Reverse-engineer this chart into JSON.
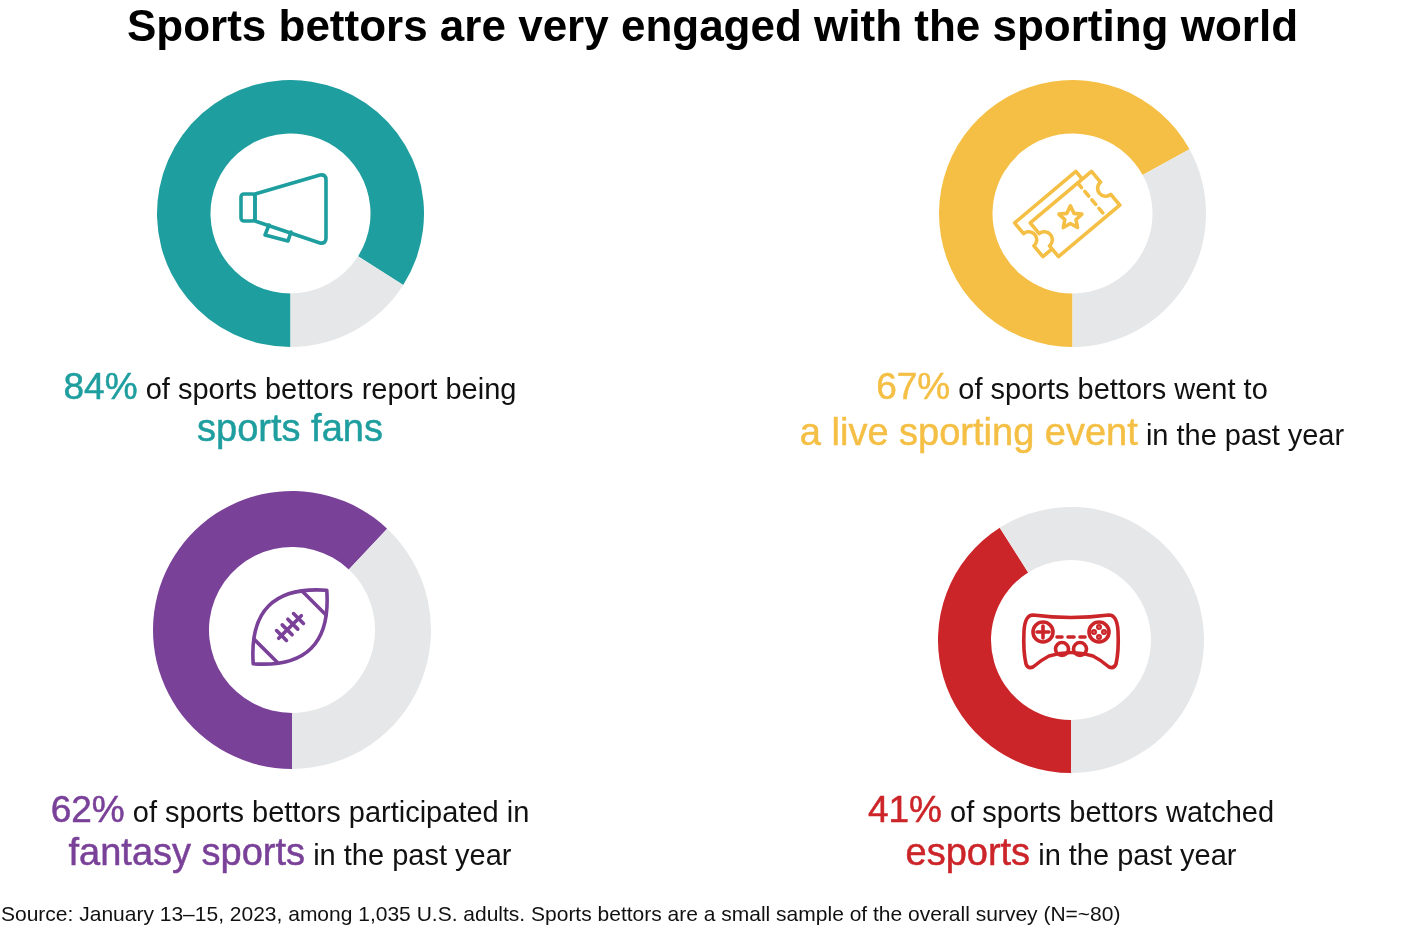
{
  "chart_data": [
    {
      "type": "donut",
      "title": "Sports bettors are very engaged with the sporting world",
      "categories": [
        null,
        null
      ],
      "values": [
        84,
        16
      ],
      "colors": [
        "#1f9e9f",
        "#e6e7e8"
      ],
      "value_labels": [
        "84%",
        null
      ],
      "annotations": [
        "of sports bettors report being",
        "sports fans"
      ]
    },
    {
      "type": "donut",
      "categories": [
        null,
        null
      ],
      "values": [
        67,
        33
      ],
      "colors": [
        "#f4bf44",
        "#e6e7e8"
      ],
      "value_labels": [
        "67%",
        null
      ],
      "annotations": [
        "of sports bettors went to",
        "a live sporting event",
        "in the past year"
      ]
    },
    {
      "type": "donut",
      "categories": [
        null,
        null
      ],
      "values": [
        62,
        38
      ],
      "colors": [
        "#7a4199",
        "#e6e7e8"
      ],
      "value_labels": [
        "62%",
        null
      ],
      "annotations": [
        "of sports bettors participated in",
        "fantasy sports",
        "in the past year"
      ]
    },
    {
      "type": "donut",
      "categories": [
        null,
        null
      ],
      "values": [
        41,
        59
      ],
      "colors": [
        "#cc2529",
        "#e6e7e8"
      ],
      "value_labels": [
        "41%",
        null
      ],
      "annotations": [
        "of sports bettors watched",
        "esports",
        "in the past year",
        "Source: January 13–15, 2023, among 1,035 U.S. adults. Sports bettors are a small sample of the overall survey (N=~80)"
      ]
    }
  ]
}
